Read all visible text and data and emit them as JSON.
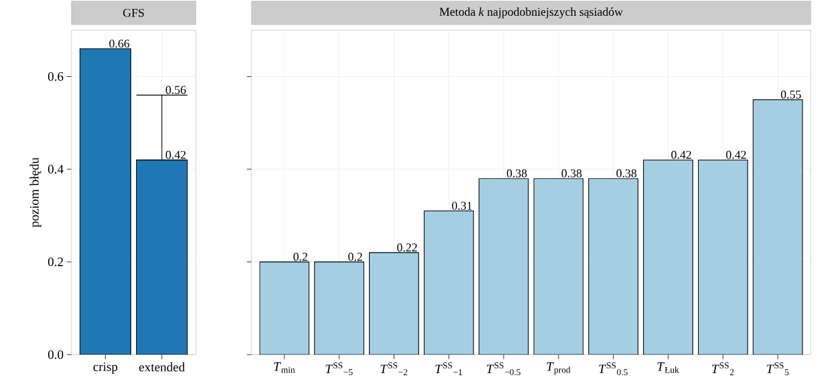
{
  "chart_data": [
    {
      "type": "bar",
      "title": "GFS",
      "ylabel": "poziom błędu",
      "categories": [
        "crisp",
        "extended"
      ],
      "values": [
        0.66,
        0.42
      ],
      "color": "#1f78b4",
      "errors": [
        null,
        [
          0.42,
          0.56
        ]
      ],
      "annotations": [
        {
          "text": "0.56",
          "x": "extended",
          "y": 0.56
        }
      ],
      "data_labels": true,
      "ylim": [
        0,
        0.7
      ],
      "yticks": [
        {
          "value": 0,
          "label": "0.0"
        },
        0.2,
        0.4,
        0.6
      ],
      "grid": true
    },
    {
      "type": "bar",
      "title": "Metoda *k* najpodobniejszych sąsiadów",
      "categories": [
        "*T*$_{min}$",
        "*T*$^{SS}$$_{−5}$",
        "*T*$^{SS}$$_{−2}$",
        "*T*$^{SS}$$_{−1}$",
        "*T*$^{SS}$$_{−0.5}$",
        "*T*$_{prod}$",
        "*T*$^{SS}$$_{0.5}$",
        "*T*$_{Łuk}$",
        "*T*$^{SS}$$_{2}$",
        "*T*$^{SS}$$_{5}$"
      ],
      "values": [
        0.2,
        0.2,
        0.22,
        0.31,
        0.38,
        0.38,
        0.38,
        0.42,
        0.42,
        0.55
      ],
      "color": "#a6cee3",
      "data_labels": true,
      "ylim": [
        0,
        0.7
      ],
      "yticks": [
        {
          "value": 0,
          "label": null
        },
        0.2,
        0.4,
        0.6
      ],
      "tick_labels": "x",
      "grid": true
    }
  ]
}
